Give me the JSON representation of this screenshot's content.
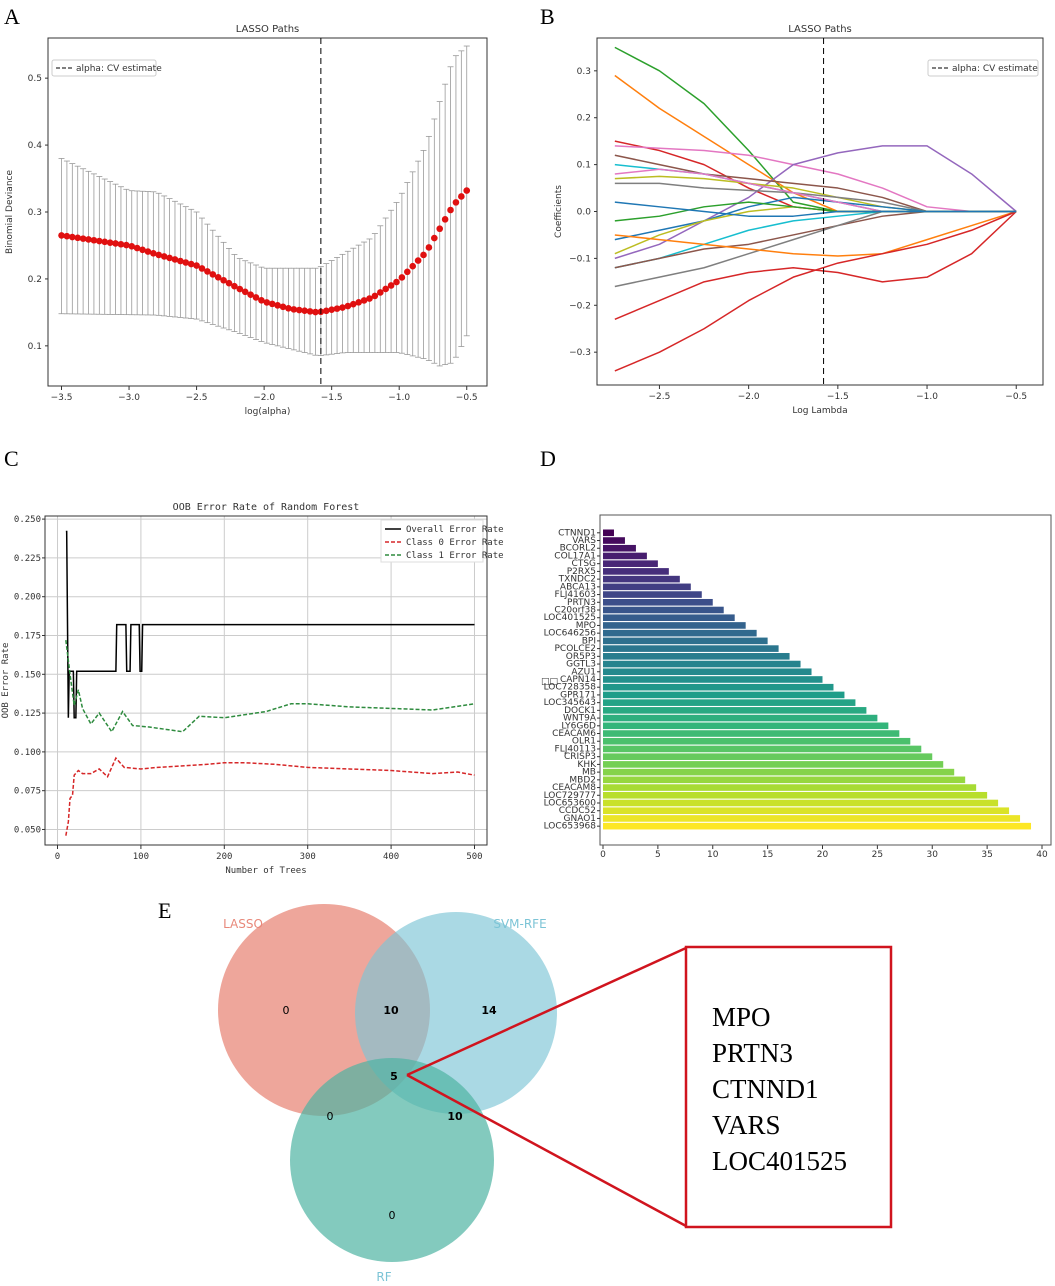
{
  "panel_labels": [
    "A",
    "B",
    "C",
    "D",
    "E"
  ],
  "chart_data": [
    {
      "type": "line",
      "id": "A",
      "title": "LASSO Paths",
      "xlabel": "log(alpha)",
      "ylabel": "Binomial Deviance",
      "xlim": [
        -3.6,
        -0.35
      ],
      "ylim": [
        0.04,
        0.56
      ],
      "xticks": [
        -3.5,
        -3.0,
        -2.5,
        -2.0,
        -1.5,
        -1.0,
        -0.5
      ],
      "yticks": [
        0.1,
        0.2,
        0.3,
        0.4,
        0.5
      ],
      "legend": "alpha: CV estimate",
      "legend_position": "top-left",
      "cv_alpha": -1.58,
      "mean": [
        [
          -3.5,
          0.265
        ],
        [
          -3.0,
          0.25
        ],
        [
          -2.8,
          0.237
        ],
        [
          -2.5,
          0.22
        ],
        [
          -2.2,
          0.187
        ],
        [
          -2.0,
          0.166
        ],
        [
          -1.8,
          0.155
        ],
        [
          -1.6,
          0.15
        ],
        [
          -1.4,
          0.158
        ],
        [
          -1.2,
          0.172
        ],
        [
          -1.0,
          0.198
        ],
        [
          -0.8,
          0.24
        ],
        [
          -0.7,
          0.275
        ],
        [
          -0.6,
          0.31
        ],
        [
          -0.5,
          0.332
        ]
      ],
      "upper": [
        [
          -3.5,
          0.38
        ],
        [
          -3.0,
          0.332
        ],
        [
          -2.8,
          0.33
        ],
        [
          -2.5,
          0.3
        ],
        [
          -2.2,
          0.232
        ],
        [
          -2.0,
          0.216
        ],
        [
          -1.6,
          0.216
        ],
        [
          -1.2,
          0.262
        ],
        [
          -1.0,
          0.32
        ],
        [
          -0.8,
          0.4
        ],
        [
          -0.6,
          0.53
        ],
        [
          -0.5,
          0.548
        ]
      ],
      "lower": [
        [
          -3.5,
          0.148
        ],
        [
          -2.8,
          0.146
        ],
        [
          -2.5,
          0.14
        ],
        [
          -2.2,
          0.12
        ],
        [
          -2.0,
          0.105
        ],
        [
          -1.6,
          0.085
        ],
        [
          -1.4,
          0.09
        ],
        [
          -1.0,
          0.09
        ],
        [
          -0.8,
          0.08
        ],
        [
          -0.7,
          0.07
        ],
        [
          -0.6,
          0.075
        ],
        [
          -0.5,
          0.115
        ]
      ]
    },
    {
      "type": "line",
      "id": "B",
      "title": "LASSO Paths",
      "xlabel": "Log Lambda",
      "ylabel": "Coefficients",
      "xlim": [
        -2.85,
        -0.35
      ],
      "ylim": [
        -0.37,
        0.37
      ],
      "xticks": [
        -2.5,
        -2.0,
        -1.5,
        -1.0,
        -0.5
      ],
      "yticks": [
        -0.3,
        -0.2,
        -0.1,
        0.0,
        0.1,
        0.2,
        0.3
      ],
      "legend": "alpha: CV estimate",
      "legend_position": "top-right",
      "cv_alpha": -1.58,
      "x": [
        -2.75,
        -2.5,
        -2.25,
        -2.0,
        -1.75,
        -1.5,
        -1.25,
        -1.0,
        -0.75,
        -0.5
      ],
      "series": [
        {
          "color": "#2ca02c",
          "values": [
            0.35,
            0.3,
            0.23,
            0.13,
            0.02,
            0,
            0,
            0,
            0,
            0
          ]
        },
        {
          "color": "#ff7f0e",
          "values": [
            0.29,
            0.22,
            0.16,
            0.1,
            0.04,
            0,
            0,
            0,
            0,
            0
          ]
        },
        {
          "color": "#d62728",
          "values": [
            0.15,
            0.13,
            0.1,
            0.05,
            0.01,
            0,
            0,
            0,
            0,
            0
          ]
        },
        {
          "color": "#e377c2",
          "values": [
            0.14,
            0.135,
            0.13,
            0.12,
            0.1,
            0.08,
            0.05,
            0.01,
            0,
            0
          ]
        },
        {
          "color": "#9467bd",
          "values": [
            -0.1,
            -0.07,
            -0.02,
            0.03,
            0.1,
            0.125,
            0.14,
            0.14,
            0.08,
            0
          ]
        },
        {
          "color": "#8c564b",
          "values": [
            0.12,
            0.1,
            0.08,
            0.07,
            0.06,
            0.05,
            0.03,
            0,
            0,
            0
          ]
        },
        {
          "color": "#17becf",
          "values": [
            0.1,
            0.09,
            0.08,
            0.06,
            0.04,
            0.02,
            0,
            0,
            0,
            0
          ]
        },
        {
          "color": "#bcbd22",
          "values": [
            0.07,
            0.075,
            0.07,
            0.06,
            0.05,
            0.03,
            0.01,
            0,
            0,
            0
          ]
        },
        {
          "color": "#7f7f7f",
          "values": [
            0.06,
            0.06,
            0.05,
            0.045,
            0.04,
            0.03,
            0.02,
            0,
            0,
            0
          ]
        },
        {
          "color": "#1f77b4",
          "values": [
            -0.06,
            -0.04,
            -0.02,
            0.01,
            0.03,
            0.02,
            0.01,
            0,
            0,
            0
          ]
        },
        {
          "color": "#bcbd22",
          "values": [
            -0.09,
            -0.05,
            -0.02,
            0,
            0.01,
            0,
            0,
            0,
            0,
            0
          ]
        },
        {
          "color": "#17becf",
          "values": [
            -0.12,
            -0.1,
            -0.07,
            -0.04,
            -0.02,
            -0.01,
            0,
            0,
            0,
            0
          ]
        },
        {
          "color": "#8c564b",
          "values": [
            -0.12,
            -0.1,
            -0.08,
            -0.07,
            -0.05,
            -0.03,
            -0.01,
            0,
            0,
            0
          ]
        },
        {
          "color": "#7f7f7f",
          "values": [
            -0.16,
            -0.14,
            -0.12,
            -0.09,
            -0.06,
            -0.03,
            0,
            0,
            0,
            0
          ]
        },
        {
          "color": "#ff7f0e",
          "values": [
            -0.05,
            -0.06,
            -0.07,
            -0.08,
            -0.09,
            -0.095,
            -0.09,
            -0.06,
            -0.03,
            0
          ]
        },
        {
          "color": "#d62728",
          "values": [
            -0.23,
            -0.19,
            -0.15,
            -0.13,
            -0.12,
            -0.13,
            -0.15,
            -0.14,
            -0.09,
            0
          ]
        },
        {
          "color": "#d62728",
          "values": [
            -0.34,
            -0.3,
            -0.25,
            -0.19,
            -0.14,
            -0.11,
            -0.09,
            -0.07,
            -0.04,
            0
          ]
        },
        {
          "color": "#e377c2",
          "values": [
            0.08,
            0.09,
            0.08,
            0.06,
            0.04,
            0.02,
            0,
            0,
            0,
            0
          ]
        },
        {
          "color": "#2ca02c",
          "values": [
            -0.02,
            -0.01,
            0.01,
            0.02,
            0.01,
            0,
            0,
            0,
            0,
            0
          ]
        },
        {
          "color": "#1f77b4",
          "values": [
            0.02,
            0.01,
            0,
            -0.01,
            -0.01,
            0,
            0,
            0,
            0,
            0
          ]
        }
      ]
    },
    {
      "type": "line",
      "id": "C",
      "title": "OOB Error Rate of Random Forest",
      "xlabel": "Number of Trees",
      "ylabel": "OOB Error Rate",
      "xlim": [
        -15,
        515
      ],
      "ylim": [
        0.04,
        0.252
      ],
      "xticks": [
        0,
        100,
        200,
        300,
        400,
        500
      ],
      "yticks": [
        0.05,
        0.075,
        0.1,
        0.125,
        0.15,
        0.175,
        0.2,
        0.225,
        0.25
      ],
      "legend_position": "top-right",
      "grid": true,
      "series": [
        {
          "name": "Overall Error Rate",
          "color": "#000000",
          "dash": false,
          "points": [
            [
              10,
              0.242
            ],
            [
              11,
              0.242
            ],
            [
              13,
              0.122
            ],
            [
              14,
              0.152
            ],
            [
              19,
              0.152
            ],
            [
              20,
              0.122
            ],
            [
              22,
              0.122
            ],
            [
              23,
              0.152
            ],
            [
              70,
              0.152
            ],
            [
              71,
              0.182
            ],
            [
              82,
              0.182
            ],
            [
              83,
              0.152
            ],
            [
              87,
              0.152
            ],
            [
              88,
              0.182
            ],
            [
              98,
              0.182
            ],
            [
              99,
              0.152
            ],
            [
              101,
              0.152
            ],
            [
              102,
              0.182
            ],
            [
              500,
              0.182
            ]
          ]
        },
        {
          "name": "Class 0 Error Rate",
          "color": "#d62728",
          "dash": true,
          "points": [
            [
              10,
              0.046
            ],
            [
              13,
              0.055
            ],
            [
              15,
              0.07
            ],
            [
              18,
              0.072
            ],
            [
              20,
              0.085
            ],
            [
              25,
              0.088
            ],
            [
              30,
              0.086
            ],
            [
              40,
              0.086
            ],
            [
              50,
              0.089
            ],
            [
              60,
              0.084
            ],
            [
              70,
              0.096
            ],
            [
              80,
              0.09
            ],
            [
              100,
              0.089
            ],
            [
              120,
              0.09
            ],
            [
              150,
              0.091
            ],
            [
              180,
              0.092
            ],
            [
              200,
              0.093
            ],
            [
              225,
              0.093
            ],
            [
              260,
              0.092
            ],
            [
              300,
              0.09
            ],
            [
              350,
              0.089
            ],
            [
              400,
              0.088
            ],
            [
              450,
              0.086
            ],
            [
              480,
              0.087
            ],
            [
              500,
              0.085
            ]
          ]
        },
        {
          "name": "Class 1 Error Rate",
          "color": "#2e8b3e",
          "dash": true,
          "points": [
            [
              10,
              0.172
            ],
            [
              15,
              0.15
            ],
            [
              20,
              0.13
            ],
            [
              25,
              0.14
            ],
            [
              30,
              0.128
            ],
            [
              40,
              0.118
            ],
            [
              50,
              0.125
            ],
            [
              65,
              0.113
            ],
            [
              78,
              0.126
            ],
            [
              90,
              0.117
            ],
            [
              110,
              0.116
            ],
            [
              150,
              0.113
            ],
            [
              170,
              0.123
            ],
            [
              200,
              0.122
            ],
            [
              250,
              0.126
            ],
            [
              280,
              0.131
            ],
            [
              300,
              0.131
            ],
            [
              350,
              0.129
            ],
            [
              400,
              0.128
            ],
            [
              450,
              0.127
            ],
            [
              500,
              0.131
            ]
          ]
        }
      ]
    },
    {
      "type": "bar",
      "id": "D",
      "orientation": "horizontal",
      "xlim": [
        0,
        40
      ],
      "xticks": [
        0,
        5,
        10,
        15,
        20,
        25,
        30,
        35,
        40
      ],
      "ylabel": "□□",
      "categories": [
        "CTNND1",
        "VARS",
        "BCORL2",
        "COL17A1",
        "CTSG",
        "P2RX5",
        "TXNDC2",
        "ABCA13",
        "FLJ41603",
        "PRTN3",
        "C20orf38",
        "LOC401525",
        "MPO",
        "LOC646256",
        "BPI",
        "PCOLCE2",
        "OR5P3",
        "GGTL3",
        "AZU1",
        "CAPN14",
        "LOC728358",
        "GPR171",
        "LOC345643",
        "DOCK1",
        "WNT9A",
        "LY6G6D",
        "CEACAM6",
        "OLR1",
        "FLJ40113",
        "CRISP3",
        "KHK",
        "MB",
        "MBD2",
        "CEACAM8",
        "LOC729777",
        "LOC653600",
        "CCDC52",
        "GNAO1",
        "LOC653968"
      ],
      "values": [
        1,
        2,
        3,
        4,
        5,
        6,
        7,
        8,
        9,
        10,
        11,
        12,
        13,
        14,
        15,
        16,
        17,
        18,
        19,
        20,
        21,
        22,
        23,
        24,
        25,
        26,
        27,
        28,
        29,
        30,
        31,
        32,
        33,
        34,
        35,
        36,
        37,
        38,
        39
      ]
    }
  ],
  "venn": {
    "sets": [
      {
        "name": "LASSO",
        "color": "#e8887a"
      },
      {
        "name": "SVM-RFE",
        "color": "#7cc4d6"
      },
      {
        "name": "RF",
        "color": "#4fb3a3"
      }
    ],
    "counts": {
      "lasso_only": "0",
      "svm_only": "14",
      "rf_only": "0",
      "lasso_svm": "10",
      "lasso_rf": "0",
      "svm_rf": "10",
      "all": "5"
    },
    "genes": [
      "MPO",
      "PRTN3",
      "CTNND1",
      "VARS",
      "LOC401525"
    ]
  }
}
